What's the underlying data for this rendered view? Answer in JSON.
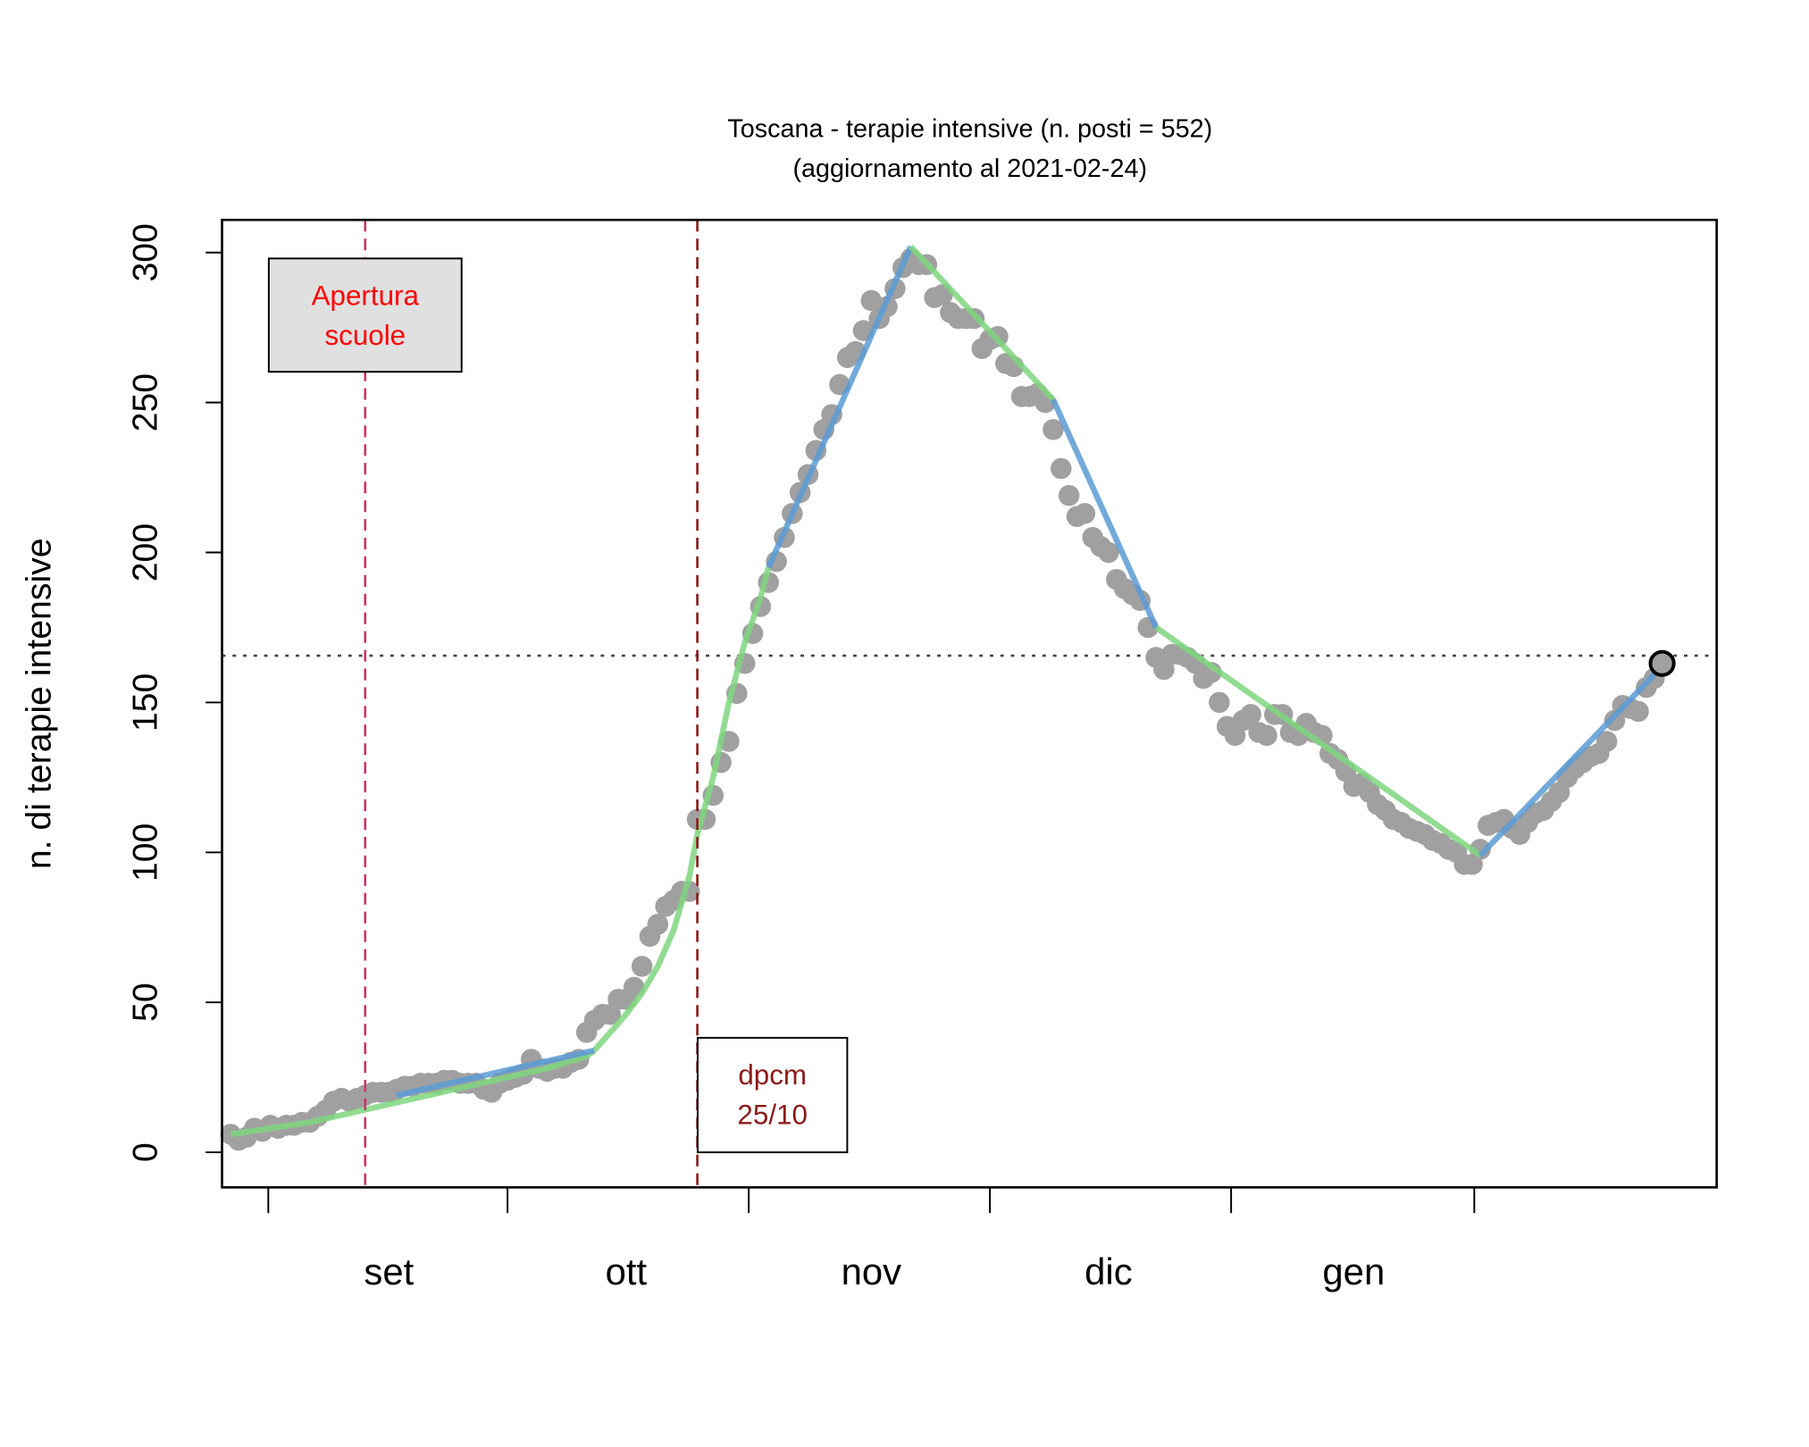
{
  "chart_data": {
    "type": "scatter",
    "title": "Toscana - terapie intensive (n. posti = 552)",
    "subtitle": "(aggiornamento al 2021-02-24)",
    "y_label": "n. di terapie intensive",
    "categories": [
      null,
      null,
      null,
      null,
      null,
      null,
      null,
      null,
      null,
      null,
      null,
      null,
      null,
      null,
      null,
      null,
      null,
      null,
      null,
      null,
      "set",
      null,
      null,
      null,
      null,
      null,
      null,
      null,
      null,
      null,
      null,
      null,
      null,
      null,
      null,
      null,
      null,
      null,
      null,
      null,
      null,
      null,
      null,
      null,
      null,
      null,
      null,
      null,
      null,
      null,
      "ott",
      null,
      null,
      null,
      null,
      null,
      null,
      null,
      null,
      null,
      null,
      null,
      null,
      null,
      null,
      null,
      null,
      null,
      null,
      null,
      null,
      null,
      null,
      null,
      null,
      null,
      null,
      null,
      null,
      null,
      null,
      "nov",
      null,
      null,
      null,
      null,
      null,
      null,
      null,
      null,
      null,
      null,
      null,
      null,
      null,
      null,
      null,
      null,
      null,
      null,
      null,
      null,
      null,
      null,
      null,
      null,
      null,
      null,
      null,
      null,
      null,
      "dic",
      null,
      null,
      null,
      null,
      null,
      null,
      null,
      null,
      null,
      null,
      null,
      null,
      null,
      null,
      null,
      null,
      null,
      null,
      null,
      null,
      null,
      null,
      null,
      null,
      null,
      null,
      null,
      null,
      null,
      null,
      "gen",
      null,
      null,
      null,
      null,
      null,
      null,
      null,
      null,
      null,
      null,
      null,
      null,
      null,
      null,
      null,
      null,
      null,
      null,
      null,
      null,
      null,
      null,
      null,
      null,
      null,
      null,
      null,
      null,
      null,
      null,
      null,
      null,
      null,
      null,
      null,
      null,
      null,
      null,
      null
    ],
    "values": [
      6,
      4,
      5,
      8,
      7,
      9,
      8,
      9,
      9,
      10,
      10,
      12,
      14,
      17,
      18,
      17,
      18,
      19,
      20,
      20,
      20,
      21,
      22,
      22,
      23,
      23,
      23,
      24,
      24,
      23,
      23,
      23,
      21,
      20,
      23,
      24,
      25,
      26,
      31,
      28,
      27,
      28,
      28,
      30,
      31,
      40,
      44,
      46,
      46,
      51,
      51,
      55,
      62,
      72,
      76,
      82,
      84,
      87,
      87,
      111,
      111,
      119,
      130,
      137,
      153,
      163,
      173,
      182,
      190,
      197,
      205,
      213,
      220,
      226,
      234,
      241,
      246,
      256,
      265,
      267,
      274,
      284,
      278,
      282,
      288,
      295,
      298,
      296,
      296,
      285,
      286,
      280,
      278,
      278,
      278,
      268,
      271,
      272,
      263,
      262,
      252,
      252,
      253,
      250,
      241,
      228,
      219,
      212,
      213,
      205,
      202,
      200,
      191,
      188,
      186,
      184,
      175,
      165,
      161,
      166,
      166,
      165,
      163,
      158,
      160,
      150,
      142,
      139,
      144,
      146,
      140,
      139,
      146,
      146,
      140,
      139,
      143,
      140,
      139,
      133,
      131,
      127,
      122,
      123,
      120,
      116,
      114,
      111,
      110,
      108,
      107,
      106,
      104,
      103,
      101,
      100,
      96,
      96,
      101,
      109,
      110,
      111,
      108,
      106,
      110,
      113,
      114,
      117,
      120,
      125,
      128,
      130,
      132,
      133,
      137,
      144,
      149,
      148,
      147,
      155,
      158,
      163
    ],
    "color": "#a0a0a0",
    "highlight_last": true,
    "fits": [
      {
        "color": "#7fd67f",
        "x": [
          0,
          5,
          10,
          15,
          20,
          25,
          30,
          35,
          40,
          45,
          46
        ],
        "values": [
          6,
          8,
          10,
          13,
          16,
          19,
          22,
          25,
          28,
          32,
          34
        ]
      },
      {
        "color": "#5b9bd5",
        "x": [
          21,
          46
        ],
        "values": [
          19,
          34
        ]
      },
      {
        "color": "#7fd67f",
        "x": [
          46,
          48,
          50,
          52,
          54,
          56,
          58,
          59,
          61,
          63,
          65,
          67,
          68
        ],
        "values": [
          34,
          40,
          46,
          53,
          62,
          74,
          92,
          106,
          125,
          150,
          170,
          185,
          195
        ]
      },
      {
        "color": "#5b9bd5",
        "x": [
          68,
          86
        ],
        "values": [
          195,
          302
        ]
      },
      {
        "color": "#7fd67f",
        "x": [
          86,
          104
        ],
        "values": [
          302,
          251
        ]
      },
      {
        "color": "#5b9bd5",
        "x": [
          104,
          117
        ],
        "values": [
          251,
          175
        ]
      },
      {
        "color": "#7fd67f",
        "x": [
          117,
          158
        ],
        "values": [
          175,
          99
        ]
      },
      {
        "color": "#5b9bd5",
        "x": [
          158,
          181
        ],
        "values": [
          99,
          162
        ]
      }
    ],
    "hline": 165.6,
    "vlines": [
      {
        "x": 17,
        "color": "#cc3366",
        "lines": [
          "Apertura",
          "scuole"
        ],
        "box_fill": "#e0e0e0"
      },
      {
        "x": 59,
        "color": "#8b1a1a",
        "lines": [
          "dpcm",
          "25/10"
        ],
        "box_fill": "#ffffff"
      }
    ],
    "xlim": [
      -1.1,
      187.9
    ],
    "ylim": [
      -11.7,
      310.9
    ],
    "yticks": [
      0,
      50,
      100,
      150,
      200,
      250,
      300
    ]
  }
}
